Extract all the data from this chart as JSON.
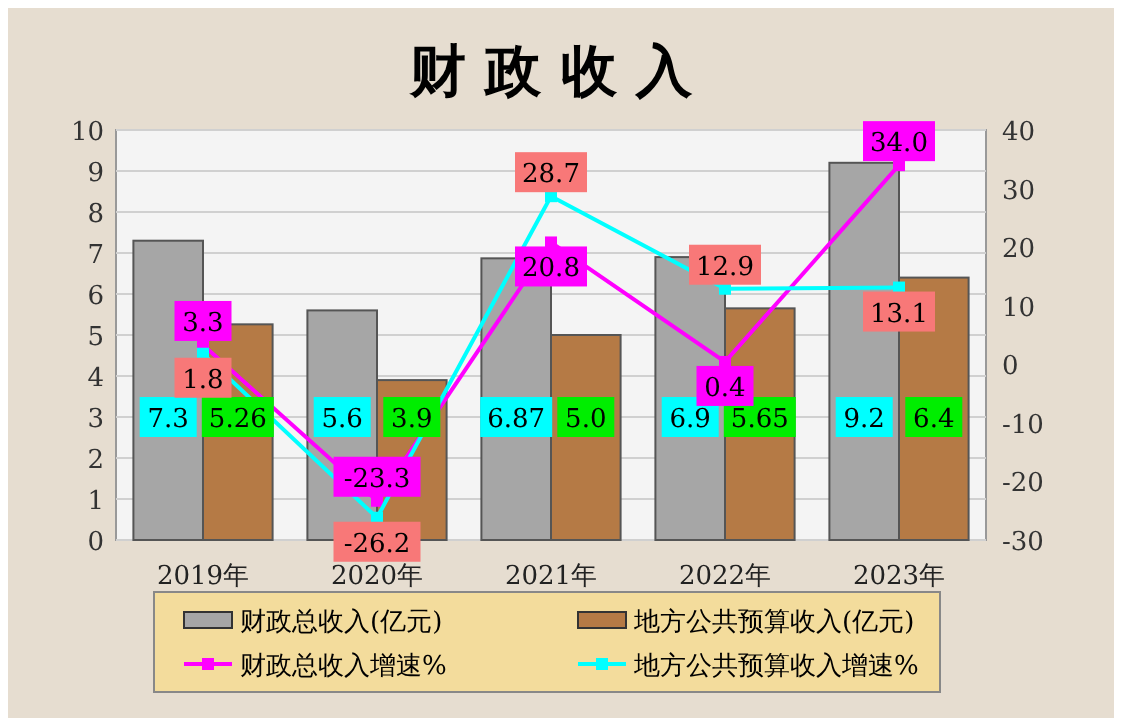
{
  "chart_data": {
    "type": "bar",
    "title": "财 政 收 入",
    "categories": [
      "2019年",
      "2020年",
      "2021年",
      "2022年",
      "2023年"
    ],
    "series": [
      {
        "name": "财政总收入(亿元)",
        "color": "#a6a6a6",
        "values": [
          7.3,
          5.6,
          6.87,
          6.9,
          9.2
        ],
        "value_labels": [
          "7.3",
          "5.6",
          "6.87",
          "6.9",
          "9.2"
        ]
      },
      {
        "name": "地方公共预算收入(亿元)",
        "color": "#b57a45",
        "values": [
          5.26,
          3.9,
          5.0,
          5.65,
          6.4
        ],
        "value_labels": [
          "5.26",
          "3.9",
          "5.0",
          "5.65",
          "6.4"
        ]
      },
      {
        "name": "财政总收入增速%",
        "type": "line",
        "axis": "y2",
        "color": "#ff00ff",
        "marker": "square",
        "values": [
          3.3,
          -23.3,
          20.8,
          0.4,
          34.0
        ],
        "value_labels": [
          "3.3",
          "-23.3",
          "20.8",
          "0.4",
          "34.0"
        ]
      },
      {
        "name": "地方公共预算收入增速%",
        "type": "line",
        "axis": "y2",
        "color": "#00ffff",
        "marker": "square",
        "values": [
          1.8,
          -26.2,
          28.7,
          12.9,
          13.1
        ],
        "value_labels": [
          "1.8",
          "-26.2",
          "28.7",
          "12.9",
          "13.1"
        ]
      }
    ],
    "ylim": [
      0,
      10
    ],
    "yticks": [
      0,
      1,
      2,
      3,
      4,
      5,
      6,
      7,
      8,
      9,
      10
    ],
    "y2lim": [
      -30,
      40
    ],
    "y2ticks": [
      -30,
      -20,
      -10,
      0,
      10,
      20,
      30,
      40
    ],
    "grid": "y",
    "legend": "bottom"
  }
}
